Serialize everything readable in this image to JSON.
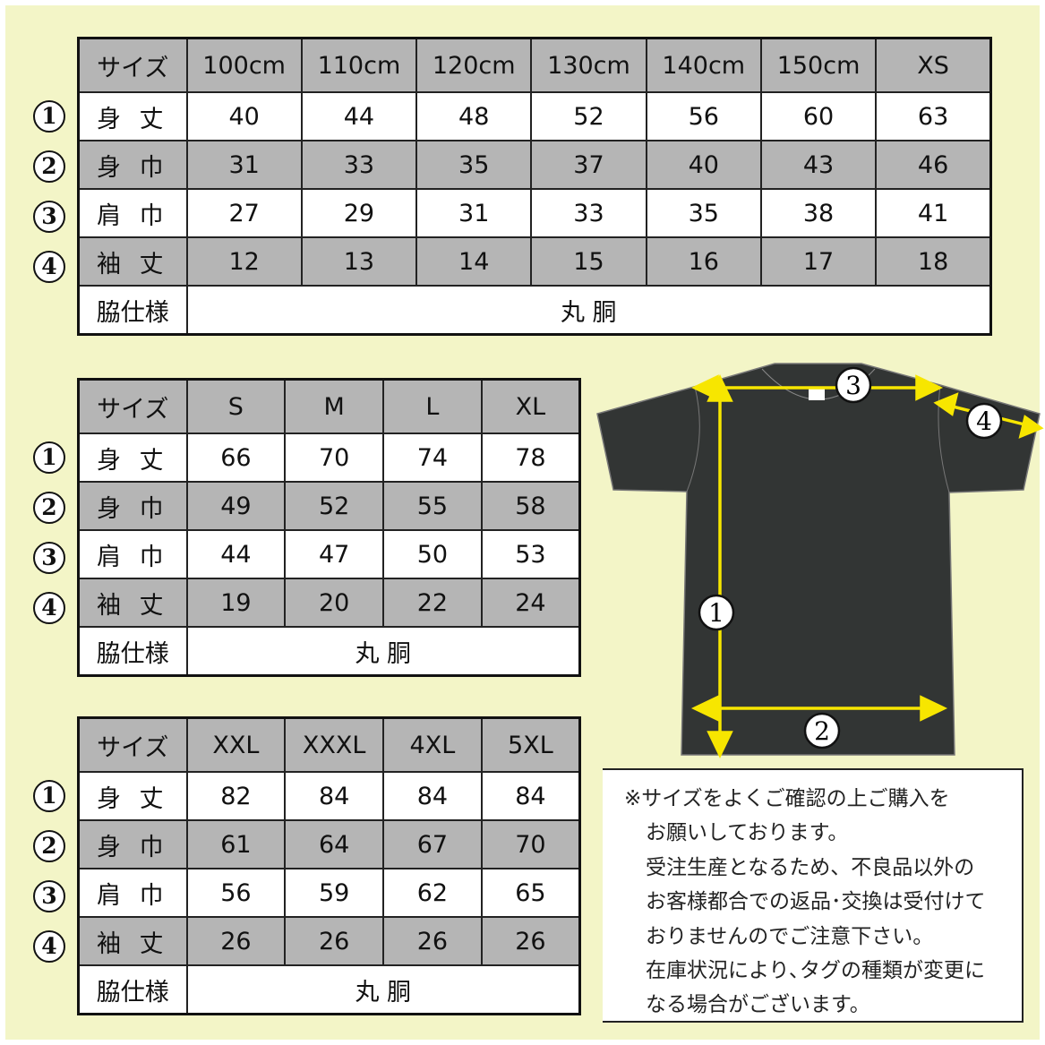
{
  "row_labels": [
    "サイズ",
    "身 丈",
    "身 巾",
    "肩 巾",
    "袖 丈",
    "脇仕様"
  ],
  "markers": [
    "1",
    "2",
    "3",
    "4"
  ],
  "side_spec_value": "丸 胴",
  "tables": [
    {
      "sizes": [
        "100cm",
        "110cm",
        "120cm",
        "130cm",
        "140cm",
        "150cm",
        "XS"
      ],
      "rows": [
        [
          "40",
          "44",
          "48",
          "52",
          "56",
          "60",
          "63"
        ],
        [
          "31",
          "33",
          "35",
          "37",
          "40",
          "43",
          "46"
        ],
        [
          "27",
          "29",
          "31",
          "33",
          "35",
          "38",
          "41"
        ],
        [
          "12",
          "13",
          "14",
          "15",
          "16",
          "17",
          "18"
        ]
      ]
    },
    {
      "sizes": [
        "S",
        "M",
        "L",
        "XL"
      ],
      "rows": [
        [
          "66",
          "70",
          "74",
          "78"
        ],
        [
          "49",
          "52",
          "55",
          "58"
        ],
        [
          "44",
          "47",
          "50",
          "53"
        ],
        [
          "19",
          "20",
          "22",
          "24"
        ]
      ]
    },
    {
      "sizes": [
        "XXL",
        "XXXL",
        "4XL",
        "5XL"
      ],
      "rows": [
        [
          "82",
          "84",
          "84",
          "84"
        ],
        [
          "61",
          "64",
          "67",
          "70"
        ],
        [
          "56",
          "59",
          "62",
          "65"
        ],
        [
          "26",
          "26",
          "26",
          "26"
        ]
      ]
    }
  ],
  "diagram": {
    "markers": [
      "1",
      "2",
      "3",
      "4"
    ],
    "shirt_color": "#323534",
    "arrow_color": "#f7e600"
  },
  "note": {
    "lines": [
      "※サイズをよくご確認の上ご購入を",
      "お願いしております。",
      "受注生産となるため、不良品以外の",
      "お客様都合での返品･交換は受付けて",
      "おりませんのでご注意下さい。",
      "在庫状況により､タグの種類が変更に",
      "なる場合がございます。"
    ]
  },
  "colors": {
    "background": "#f3f5c7",
    "header_gray": "#b5b5b5"
  }
}
